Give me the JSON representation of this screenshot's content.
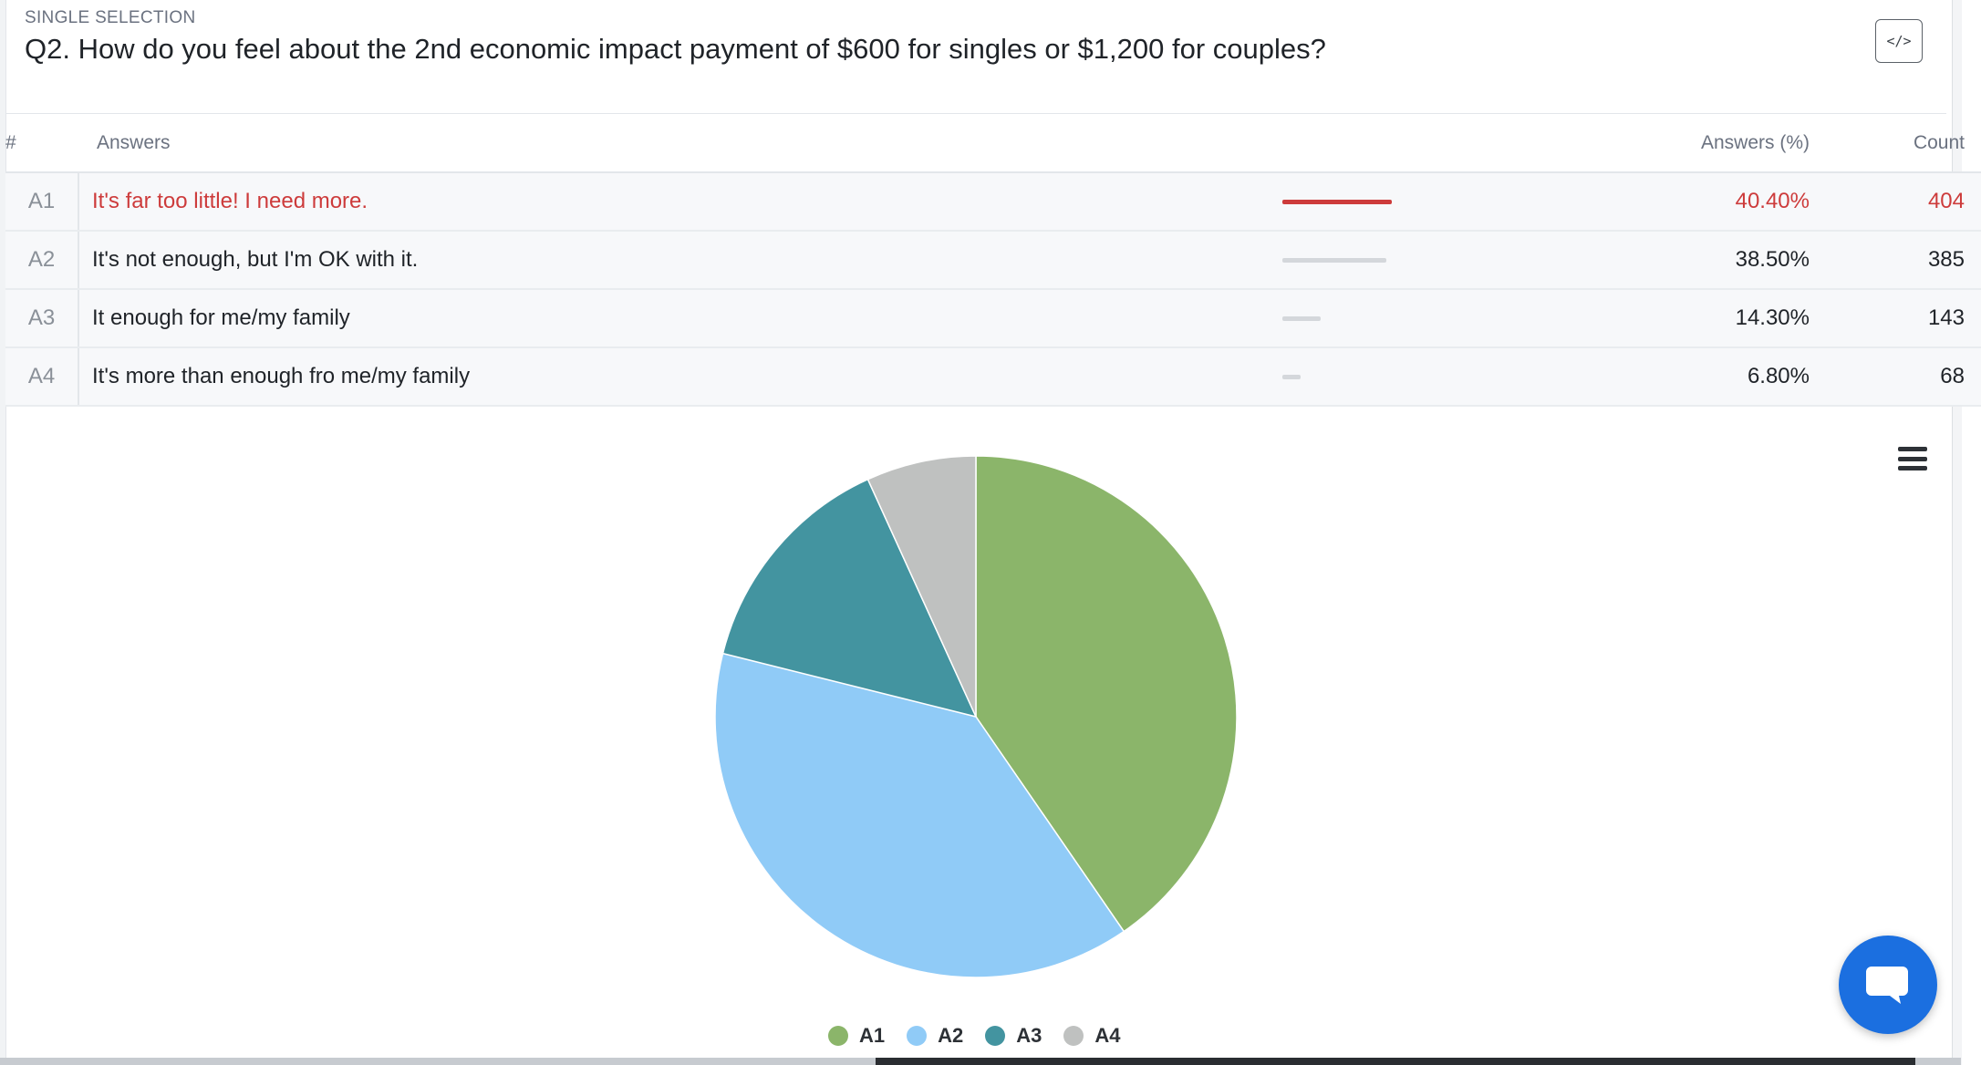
{
  "question": {
    "kind": "SINGLE SELECTION",
    "title": "Q2. How do you feel about the 2nd economic impact payment of $600 for singles or $1,200 for couples?"
  },
  "toolbar": {
    "embed_label": "</>"
  },
  "table": {
    "headers": {
      "num": "#",
      "answers": "Answers",
      "percent": "Answers (%)",
      "count": "Count"
    },
    "rows": [
      {
        "id": "A1",
        "text": "It's far too little! I need more.",
        "percent": "40.40%",
        "count": "404"
      },
      {
        "id": "A2",
        "text": "It's not enough, but I'm OK with it.",
        "percent": "38.50%",
        "count": "385"
      },
      {
        "id": "A3",
        "text": "It enough for me/my family",
        "percent": "14.30%",
        "count": "143"
      },
      {
        "id": "A4",
        "text": "It's more than enough fro me/my family",
        "percent": "6.80%",
        "count": "68"
      }
    ]
  },
  "colors": {
    "highlight_text": "#cd3b3b",
    "bar_highlight": "#cd3b3b",
    "bar_default": "#d4d7db",
    "A1": "#8bb56a",
    "A2": "#90cbf7",
    "A3": "#4394a0",
    "A4": "#bfc1c0",
    "chat_button": "#1b6fe0"
  },
  "icons": {
    "menu": "hamburger-menu-icon",
    "chat": "chat-bubble-icon"
  },
  "chart_data": {
    "type": "pie",
    "categories": [
      "A1",
      "A2",
      "A3",
      "A4"
    ],
    "values": [
      40.4,
      38.5,
      14.3,
      6.8
    ],
    "counts": [
      404,
      385,
      143,
      68
    ],
    "colors": [
      "#8bb56a",
      "#90cbf7",
      "#4394a0",
      "#bfc1c0"
    ],
    "start_angle_deg": 0,
    "direction": "clockwise",
    "legend": {
      "position": "bottom-center",
      "items": [
        "A1",
        "A2",
        "A3",
        "A4"
      ]
    }
  }
}
